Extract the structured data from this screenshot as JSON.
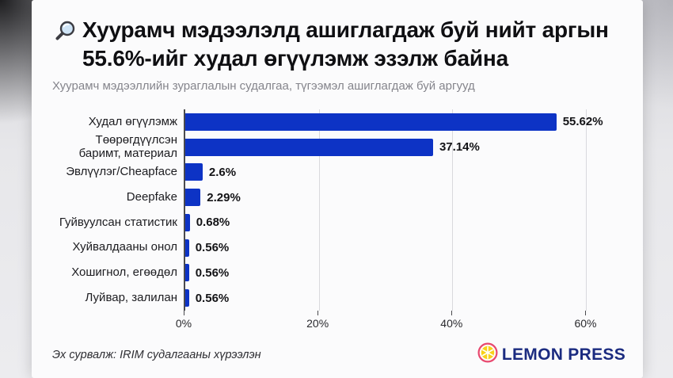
{
  "colors": {
    "bar": "#0d33c5",
    "axis": "#4a4a4e",
    "gridline": "#d9d9dd",
    "card_background": "#fbfbfc",
    "title_text": "#0f0f12",
    "subtitle_text": "#85858c",
    "logo_navy": "#1b2b80",
    "lemon_yellow": "#f8d21a",
    "lemon_ring": "#e8486f"
  },
  "header": {
    "icon": "magnifier-icon",
    "title": "Хуурамч мэдээлэлд ашиглагдаж буй нийт аргын 55.6%-ийг худал өгүүлэмж эзэлж байна",
    "subtitle": "Хуурамч мэдээллийн зураглалын судалгаа, түгээмэл ашиглагдаж буй аргууд"
  },
  "chart_data": {
    "type": "bar",
    "orientation": "horizontal",
    "categories": [
      "Худал өгүүлэмж",
      "Төөрөгдүүлсэн баримт, материал",
      "Эвлүүлэг/Cheapface",
      "Deepfake",
      "Гуйвуулсан статистик",
      "Хуйвалдааны онол",
      "Хошигнол, егөөдөл",
      "Луйвар, залилан"
    ],
    "values": [
      55.62,
      37.14,
      2.6,
      2.29,
      0.68,
      0.56,
      0.56,
      0.56
    ],
    "value_labels": [
      "55.62%",
      "37.14%",
      "2.6%",
      "2.29%",
      "0.68%",
      "0.56%",
      "0.56%",
      "0.56%"
    ],
    "x_ticks": [
      {
        "label": "0%",
        "value": 0
      },
      {
        "label": "20%",
        "value": 20
      },
      {
        "label": "40%",
        "value": 40
      },
      {
        "label": "60%",
        "value": 60
      }
    ],
    "xlim": [
      0,
      64.2
    ],
    "grid": true,
    "legend": false
  },
  "footer": {
    "source": "Эх сурвалж: IRIM судалгааны хүрээлэн",
    "logo": {
      "icon": "lemon-icon",
      "text": "LEMON PRESS"
    }
  }
}
